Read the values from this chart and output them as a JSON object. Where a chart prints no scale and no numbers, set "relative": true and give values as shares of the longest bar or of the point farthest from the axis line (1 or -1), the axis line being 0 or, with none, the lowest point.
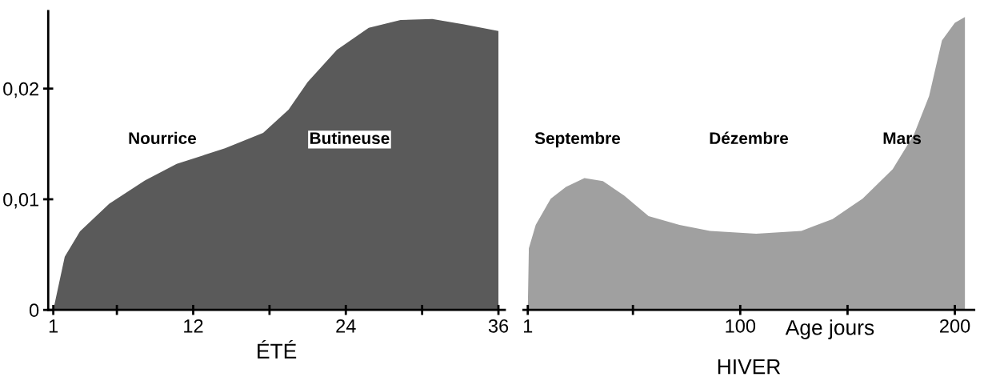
{
  "chart_data": [
    {
      "type": "area",
      "xlabel": "ÉTÉ",
      "x": [
        1,
        1.9,
        3.1,
        5.4,
        8.2,
        10.7,
        14.5,
        17.5,
        19.5,
        21.0,
        23.3,
        25.8,
        28.3,
        30.8,
        33.3,
        36
      ],
      "series": [
        {
          "color": "#5a5a5a",
          "values": [
            0,
            0.0048,
            0.0071,
            0.0096,
            0.0117,
            0.0132,
            0.0146,
            0.016,
            0.0181,
            0.0206,
            0.0235,
            0.0255,
            0.0262,
            0.0263,
            0.0258,
            0.0252
          ]
        }
      ],
      "xlim": [
        0.6,
        36.5
      ],
      "xticks": [
        1,
        {
          "value": 6,
          "label": null
        },
        12,
        {
          "value": 18,
          "label": null
        },
        24,
        {
          "value": 30,
          "label": null
        },
        36
      ],
      "ylim": [
        0,
        0.027
      ],
      "yticks": [
        {
          "value": 0,
          "label": "0"
        },
        {
          "value": 0.01,
          "label": "0,01"
        },
        {
          "value": 0.02,
          "label": "0,02"
        }
      ],
      "annotations": [
        "Nourrice",
        "Butineuse"
      ]
    },
    {
      "type": "area",
      "xlabel": "HIVER",
      "x": [
        1,
        1.5,
        4.7,
        11.7,
        18.8,
        27.4,
        36,
        46,
        57.3,
        71.7,
        85.9,
        107.4,
        128.5,
        143,
        157,
        171,
        181,
        188,
        194,
        200,
        204.7
      ],
      "relative": true,
      "series": [
        {
          "color": "#a0a0a0",
          "values": [
            0,
            0.21,
            0.29,
            0.38,
            0.42,
            0.45,
            0.44,
            0.39,
            0.32,
            0.29,
            0.27,
            0.26,
            0.27,
            0.31,
            0.38,
            0.48,
            0.6,
            0.73,
            0.92,
            0.98,
            1
          ]
        }
      ],
      "xlim": [
        -1,
        209
      ],
      "xticks": [
        1,
        {
          "value": 50,
          "label": null
        },
        100,
        {
          "value": 150,
          "label": null
        },
        200
      ],
      "tick_labels": "x",
      "annotations": [
        "Septembre",
        "Dézembre",
        "Mars",
        "Age jours"
      ]
    }
  ]
}
